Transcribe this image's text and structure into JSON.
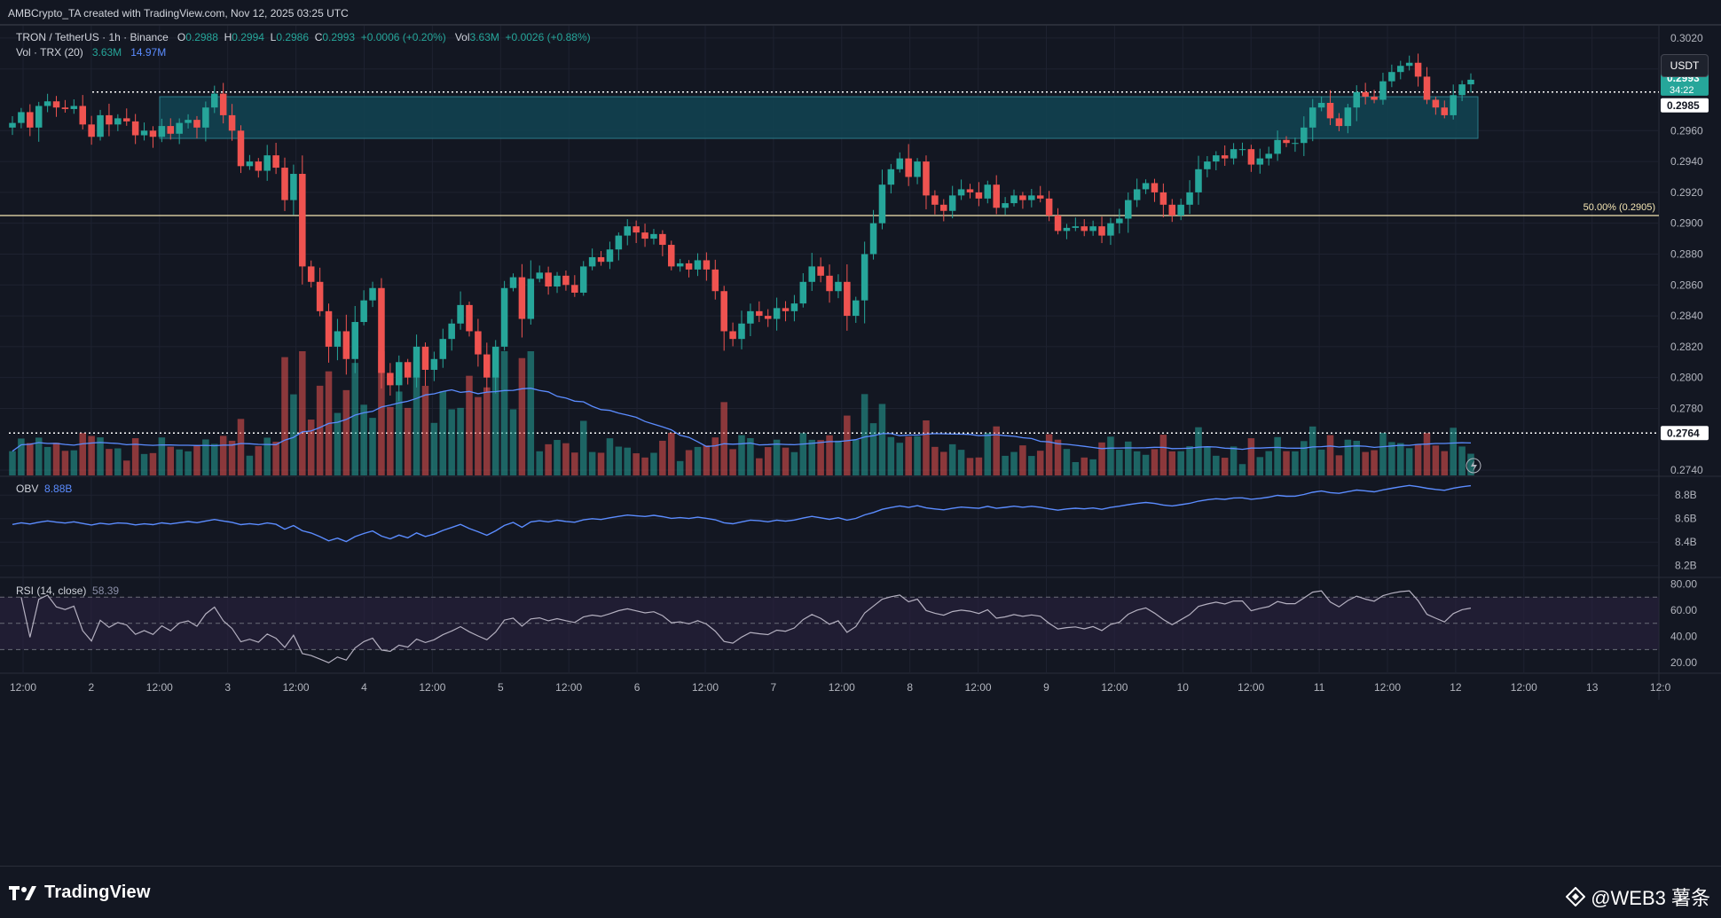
{
  "header": {
    "attribution": "AMBCrypto_TA created with TradingView.com, Nov 12, 2025 03:25 UTC"
  },
  "legend": {
    "symbol": "TRON / TetherUS · 1h · Binance",
    "o_label": "O",
    "o": "0.2988",
    "h_label": "H",
    "h": "0.2994",
    "l_label": "L",
    "l": "0.2986",
    "c_label": "C",
    "c": "0.2993",
    "change": "+0.0006 (+0.20%)",
    "vol_label": "Vol",
    "vol": "3.63M",
    "vol_change": "+0.0026 (+0.88%)",
    "vol_indicator": "Vol · TRX (20)",
    "vol_value": "3.63M",
    "vol_ma": "14.97M"
  },
  "unit_badge": "USDT",
  "price_labels": {
    "last_price": "0.2993",
    "countdown": "34:22",
    "resistance": "0.2985",
    "support": "0.2764"
  },
  "fib_label": "50.00% (0.2905)",
  "obv": {
    "label": "OBV",
    "value": "8.88B"
  },
  "rsi": {
    "label": "RSI (14, close)",
    "value": "58.39"
  },
  "footer": {
    "brand": "TradingView",
    "watermark": "@WEB3 薯条"
  },
  "colors": {
    "up": "#26a69a",
    "down": "#ef5350",
    "zone": "#124150",
    "fib": "#f5e6b3",
    "line": "#5b8cff",
    "rsi_band": "#2a2240",
    "bg": "#131722"
  },
  "chart_data": [
    {
      "type": "candlestick",
      "title": "TRON / TetherUS · 1h · Binance",
      "ylim": [
        0.2736,
        0.3028
      ],
      "y_ticks": [
        "0.3020",
        "0.3000",
        "0.2960",
        "0.2940",
        "0.2920",
        "0.2900",
        "0.2880",
        "0.2860",
        "0.2840",
        "0.2820",
        "0.2800",
        "0.2780",
        "0.2740"
      ],
      "x_tick_labels": [
        "12:00",
        "2",
        "12:00",
        "3",
        "12:00",
        "4",
        "12:00",
        "5",
        "12:00",
        "6",
        "12:00",
        "7",
        "12:00",
        "8",
        "12:00",
        "9",
        "12:00",
        "10",
        "12:00",
        "11",
        "12:00",
        "12",
        "12:00",
        "13",
        "12:0"
      ],
      "last": {
        "open": 0.2988,
        "high": 0.2994,
        "low": 0.2986,
        "close": 0.2993
      },
      "resistance_zone": [
        0.2955,
        0.2982
      ],
      "resistance_level": 0.2985,
      "support_level": 0.2764,
      "fib_50": 0.2905,
      "path": [
        0.2965,
        0.2972,
        0.2962,
        0.2976,
        0.2979,
        0.2975,
        0.2974,
        0.2976,
        0.2964,
        0.2956,
        0.297,
        0.2964,
        0.2968,
        0.2966,
        0.2957,
        0.296,
        0.2956,
        0.2963,
        0.2958,
        0.2965,
        0.2967,
        0.2962,
        0.2975,
        0.2984,
        0.297,
        0.296,
        0.2937,
        0.294,
        0.2934,
        0.2944,
        0.2936,
        0.2915,
        0.2932,
        0.2872,
        0.2862,
        0.2843,
        0.282,
        0.283,
        0.2812,
        0.2836,
        0.285,
        0.2858,
        0.2803,
        0.2795,
        0.281,
        0.28,
        0.282,
        0.2805,
        0.2812,
        0.2825,
        0.2835,
        0.2847,
        0.283,
        0.2815,
        0.28,
        0.282,
        0.2858,
        0.2865,
        0.2838,
        0.2864,
        0.2868,
        0.2859,
        0.2866,
        0.286,
        0.2855,
        0.2872,
        0.2878,
        0.2875,
        0.2883,
        0.2892,
        0.2898,
        0.2894,
        0.289,
        0.2893,
        0.2886,
        0.2872,
        0.2874,
        0.287,
        0.2876,
        0.287,
        0.2856,
        0.283,
        0.2825,
        0.2835,
        0.2843,
        0.284,
        0.2838,
        0.2845,
        0.2843,
        0.2848,
        0.2862,
        0.2872,
        0.2866,
        0.2856,
        0.2862,
        0.284,
        0.285,
        0.288,
        0.29,
        0.2925,
        0.2935,
        0.2942,
        0.293,
        0.294,
        0.2918,
        0.2912,
        0.2908,
        0.2918,
        0.2922,
        0.292,
        0.2916,
        0.2925,
        0.291,
        0.2913,
        0.2918,
        0.2915,
        0.2918,
        0.2916,
        0.2905,
        0.2895,
        0.2897,
        0.2898,
        0.2895,
        0.2898,
        0.2892,
        0.29,
        0.2903,
        0.2915,
        0.2922,
        0.2926,
        0.292,
        0.2912,
        0.2905,
        0.2912,
        0.292,
        0.2935,
        0.294,
        0.2944,
        0.2942,
        0.2948,
        0.2948,
        0.2938,
        0.2942,
        0.2945,
        0.2954,
        0.2952,
        0.2952,
        0.2962,
        0.2975,
        0.2978,
        0.2968,
        0.2963,
        0.2975,
        0.2985,
        0.2982,
        0.298,
        0.2992,
        0.2998,
        0.3002,
        0.3004,
        0.2995,
        0.298,
        0.2975,
        0.297,
        0.2983,
        0.299,
        0.2993
      ]
    },
    {
      "type": "bar",
      "title": "Vol · TRX (20)",
      "note": "volume bars colored by candle direction with 20-period moving average line",
      "latest": "3.63M",
      "ma": "14.97M"
    },
    {
      "type": "line",
      "title": "OBV",
      "y_ticks": [
        "8.8B",
        "8.6B",
        "8.4B",
        "8.2B"
      ],
      "ylim": [
        8.1,
        8.96
      ],
      "latest": "8.88B"
    },
    {
      "type": "line",
      "title": "RSI (14, close)",
      "y_ticks": [
        "80.00",
        "60.00",
        "40.00",
        "20.00"
      ],
      "ylim": [
        12,
        85
      ],
      "bands": [
        30,
        50,
        70
      ],
      "latest": "58.39"
    }
  ]
}
